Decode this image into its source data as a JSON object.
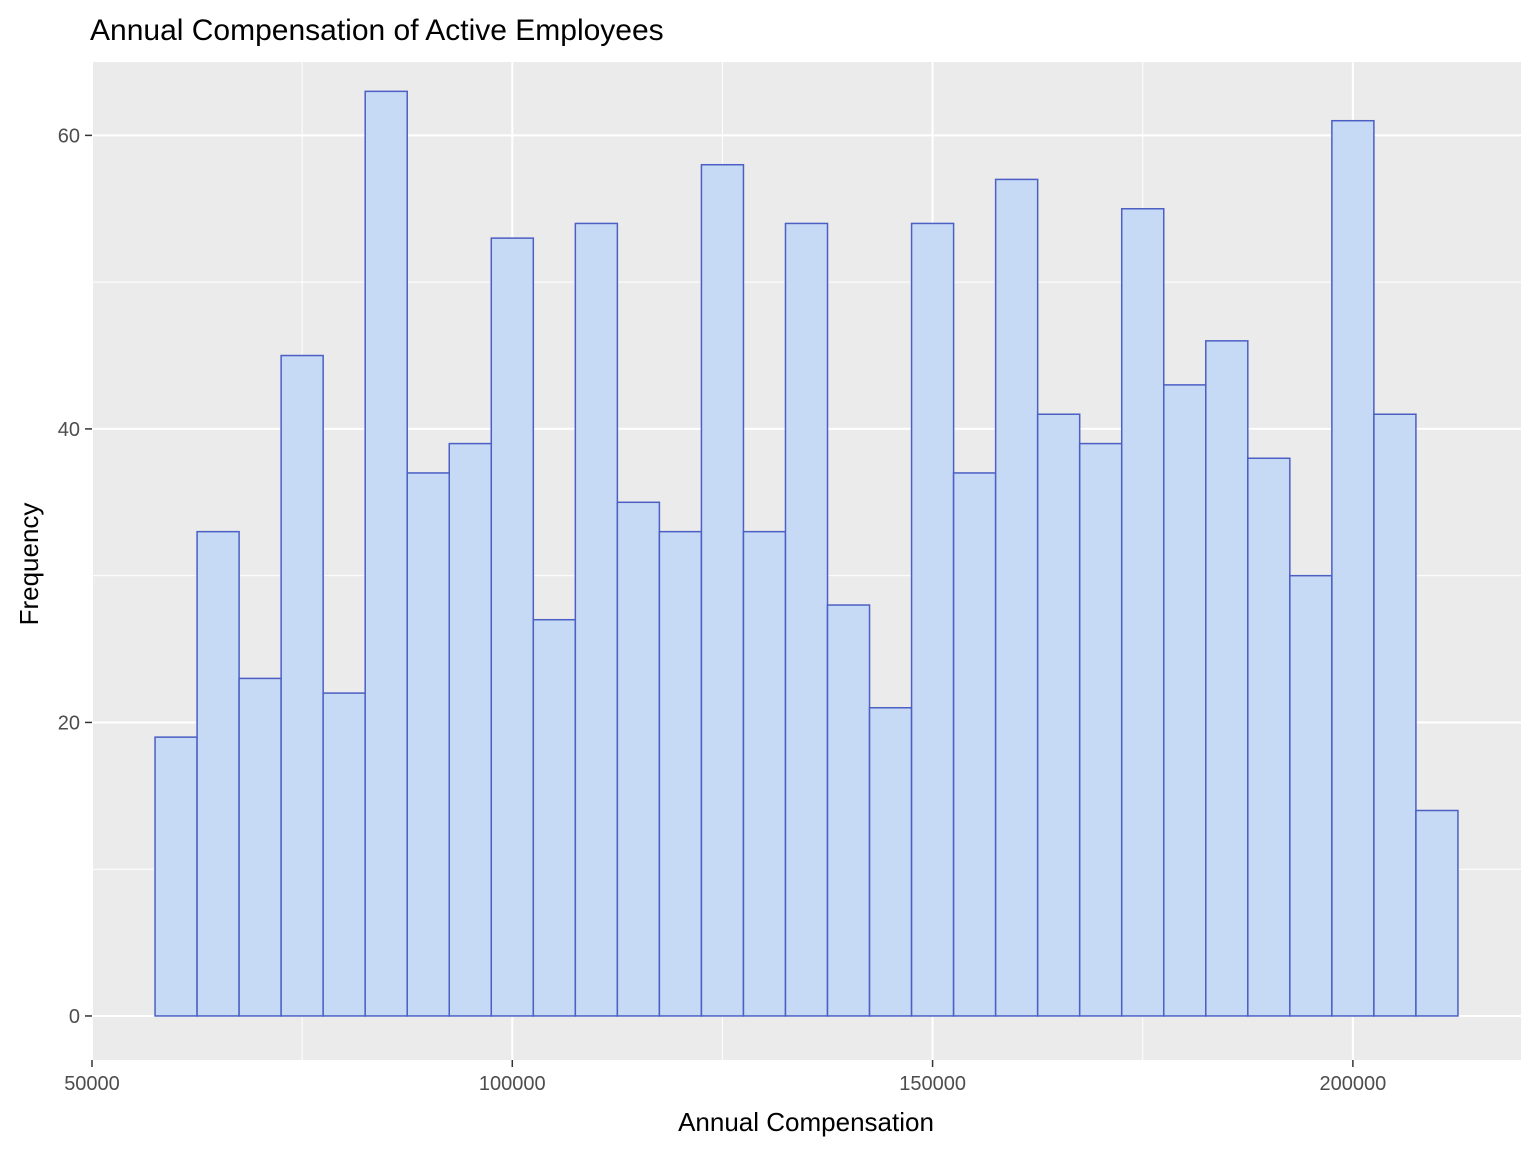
{
  "chart_data": {
    "type": "bar",
    "title": "Annual Compensation of Active Employees",
    "xlabel": "Annual Compensation",
    "ylabel": "Frequency",
    "bin_edges": [
      57500,
      62500,
      67500,
      72500,
      77500,
      82500,
      87500,
      92500,
      97500,
      102500,
      107500,
      112500,
      117500,
      122500,
      127500,
      132500,
      137500,
      142500,
      147500,
      152500,
      157500,
      162500,
      167500,
      172500,
      177500,
      182500,
      187500,
      192500,
      197500,
      202500,
      207500,
      212500
    ],
    "values": [
      19,
      33,
      23,
      45,
      22,
      63,
      37,
      39,
      53,
      27,
      54,
      35,
      33,
      58,
      33,
      54,
      28,
      21,
      54,
      37,
      57,
      41,
      39,
      55,
      43,
      46,
      38,
      30,
      61,
      41,
      14
    ],
    "xlim": [
      50000,
      220000
    ],
    "ylim": [
      -3,
      65
    ],
    "x_ticks": [
      "50000",
      "100000",
      "150000",
      "200000"
    ],
    "y_ticks": [
      "0",
      "20",
      "40",
      "60"
    ],
    "grid": true,
    "colors": {
      "bar_fill": "#c6d9f5",
      "bar_stroke": "#4b5fc4",
      "panel_background": "#ebebeb",
      "grid": "#ffffff"
    }
  }
}
